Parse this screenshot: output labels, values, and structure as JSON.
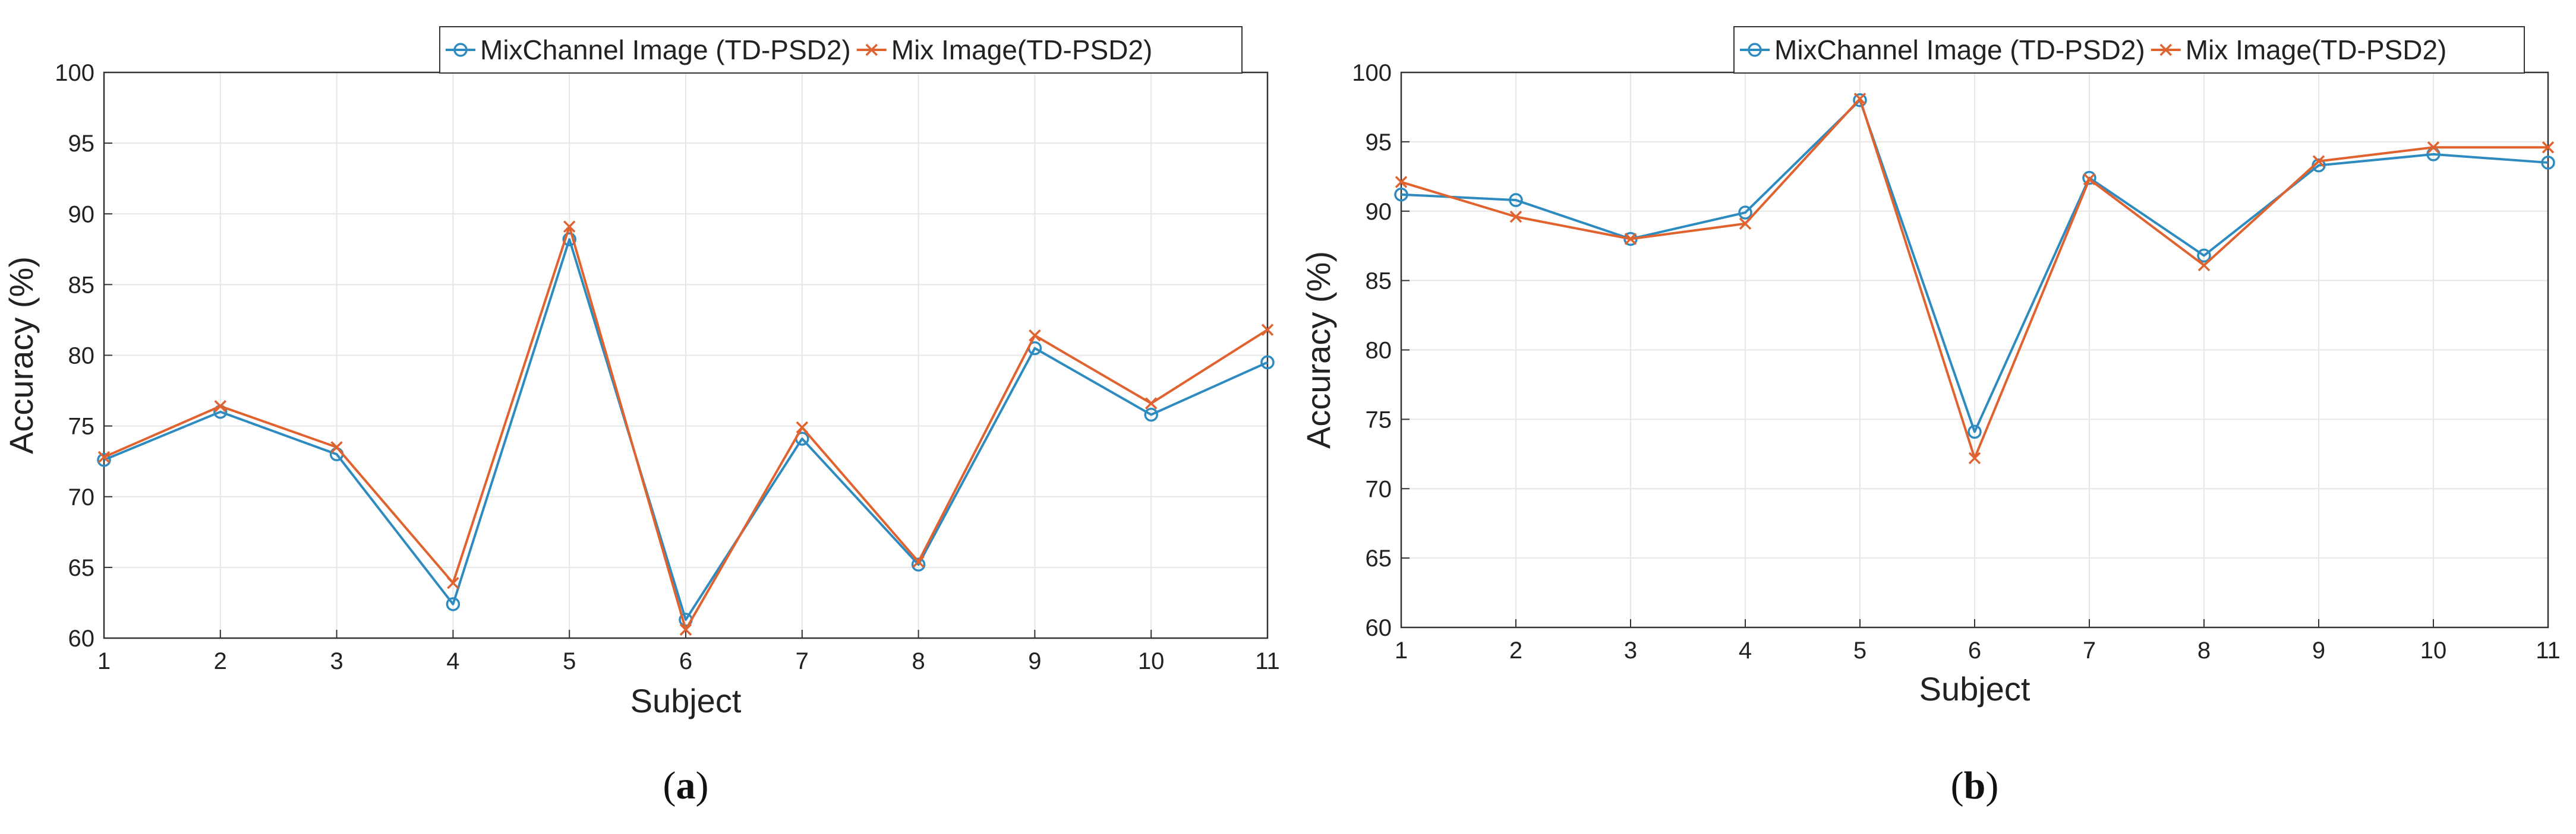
{
  "figure": {
    "colors": {
      "mixchannel": "#2E8BC0",
      "mix": "#E0622F",
      "grid": "#E6E6E6",
      "axis": "#333333"
    }
  },
  "chart_data": [
    {
      "type": "line",
      "caption_letter": "a",
      "xlabel": "Subject",
      "ylabel": "Accuracy (%)",
      "xlim": [
        1,
        11
      ],
      "ylim": [
        60,
        100
      ],
      "x": [
        1,
        2,
        3,
        4,
        5,
        6,
        7,
        8,
        9,
        10,
        11
      ],
      "xticks": [
        "1",
        "2",
        "3",
        "4",
        "5",
        "6",
        "7",
        "8",
        "9",
        "10",
        "11"
      ],
      "yticks": [
        "60",
        "65",
        "70",
        "75",
        "80",
        "85",
        "90",
        "95",
        "100"
      ],
      "grid": true,
      "legend_position": "top-right",
      "series": [
        {
          "name": "MixChannel Image (TD-PSD2)",
          "marker": "circle",
          "color": "#2E8BC0",
          "values": [
            72.6,
            76.0,
            73.0,
            62.4,
            88.2,
            61.3,
            74.1,
            65.2,
            80.5,
            75.8,
            79.5
          ]
        },
        {
          "name": "Mix Image(TD-PSD2)",
          "marker": "x",
          "color": "#E0622F",
          "values": [
            72.8,
            76.4,
            73.5,
            63.9,
            89.1,
            60.6,
            74.9,
            65.4,
            81.4,
            76.6,
            81.8
          ]
        }
      ]
    },
    {
      "type": "line",
      "caption_letter": "b",
      "xlabel": "Subject",
      "ylabel": "Accuracy (%)",
      "xlim": [
        1,
        11
      ],
      "ylim": [
        60,
        100
      ],
      "x": [
        1,
        2,
        3,
        4,
        5,
        6,
        7,
        8,
        9,
        10,
        11
      ],
      "xticks": [
        "1",
        "2",
        "3",
        "4",
        "5",
        "6",
        "7",
        "8",
        "9",
        "10",
        "11"
      ],
      "yticks": [
        "60",
        "65",
        "70",
        "75",
        "80",
        "85",
        "90",
        "95",
        "100"
      ],
      "grid": true,
      "legend_position": "top-right",
      "series": [
        {
          "name": "MixChannel Image (TD-PSD2)",
          "marker": "circle",
          "color": "#2E8BC0",
          "values": [
            91.2,
            90.8,
            88.0,
            89.9,
            98.0,
            74.1,
            92.4,
            86.8,
            93.3,
            94.1,
            93.5
          ]
        },
        {
          "name": "Mix Image(TD-PSD2)",
          "marker": "x",
          "color": "#E0622F",
          "values": [
            92.1,
            89.6,
            88.0,
            89.1,
            98.1,
            72.2,
            92.3,
            86.1,
            93.6,
            94.6,
            94.6
          ]
        }
      ]
    }
  ]
}
